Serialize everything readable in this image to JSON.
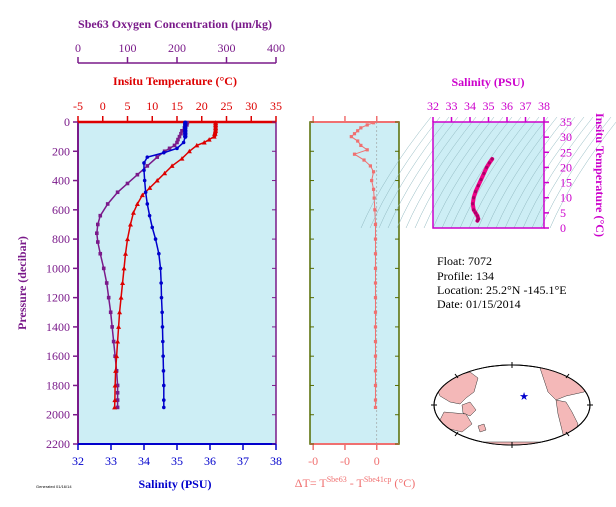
{
  "colors": {
    "oxygen": "#7a1a8a",
    "temperature": "#dd0000",
    "salinity": "#0000cc",
    "delta": "#f07070",
    "plot_bg": "#cdeef5",
    "delta_frame": "#556b00",
    "ts_frame": "#cc00cc",
    "ts_line": "#ee0088",
    "land": "#f4b8b8",
    "ocean_map": "#ffffff",
    "star": "#0000cc"
  },
  "chart_data": [
    {
      "type": "line",
      "name": "main-profile",
      "ylabel": "Pressure (decibar)",
      "ylim": [
        0,
        2200
      ],
      "yticks": [
        "0",
        "200",
        "400",
        "600",
        "800",
        "1000",
        "1200",
        "1400",
        "1600",
        "1800",
        "2000",
        "2200"
      ],
      "axes": {
        "oxygen": {
          "label": "Sbe63 Oxygen Concentration (µm/kg)",
          "xlim": [
            0,
            400
          ],
          "ticks": [
            "0",
            "100",
            "200",
            "300",
            "400"
          ]
        },
        "temperature": {
          "label": "Insitu Temperature (°C)",
          "xlim": [
            -5,
            35
          ],
          "ticks": [
            "-5",
            "0",
            "5",
            "10",
            "15",
            "20",
            "25",
            "30",
            "35"
          ]
        },
        "salinity": {
          "label": "Salinity (PSU)",
          "xlim": [
            32,
            38
          ],
          "ticks": [
            "32",
            "33",
            "34",
            "35",
            "36",
            "37",
            "38"
          ]
        }
      },
      "series": [
        {
          "key": "oxygen",
          "points": [
            [
              221,
              5
            ],
            [
              220,
              20
            ],
            [
              215,
              40
            ],
            [
              210,
              60
            ],
            [
              208,
              80
            ],
            [
              205,
              100
            ],
            [
              202,
              120
            ],
            [
              200,
              140
            ],
            [
              195,
              160
            ],
            [
              185,
              180
            ],
            [
              175,
              200
            ],
            [
              160,
              240
            ],
            [
              140,
              300
            ],
            [
              120,
              360
            ],
            [
              100,
              420
            ],
            [
              80,
              480
            ],
            [
              60,
              560
            ],
            [
              45,
              640
            ],
            [
              40,
              700
            ],
            [
              38,
              760
            ],
            [
              40,
              820
            ],
            [
              45,
              900
            ],
            [
              52,
              1000
            ],
            [
              58,
              1100
            ],
            [
              62,
              1200
            ],
            [
              66,
              1300
            ],
            [
              69,
              1400
            ],
            [
              72,
              1500
            ],
            [
              75,
              1600
            ],
            [
              78,
              1700
            ],
            [
              80,
              1800
            ],
            [
              80,
              1850
            ],
            [
              80,
              1900
            ],
            [
              80,
              1950
            ]
          ]
        },
        {
          "key": "temperature",
          "points": [
            [
              22.8,
              5
            ],
            [
              22.8,
              20
            ],
            [
              22.8,
              40
            ],
            [
              22.8,
              60
            ],
            [
              22.7,
              80
            ],
            [
              22.5,
              100
            ],
            [
              21.5,
              120
            ],
            [
              20.5,
              140
            ],
            [
              19,
              160
            ],
            [
              17.5,
              200
            ],
            [
              16,
              250
            ],
            [
              14,
              300
            ],
            [
              12.5,
              350
            ],
            [
              11,
              400
            ],
            [
              9.5,
              450
            ],
            [
              8,
              500
            ],
            [
              7,
              560
            ],
            [
              6.2,
              620
            ],
            [
              5.6,
              700
            ],
            [
              5,
              800
            ],
            [
              4.6,
              900
            ],
            [
              4.3,
              1000
            ],
            [
              4,
              1100
            ],
            [
              3.7,
              1200
            ],
            [
              3.4,
              1300
            ],
            [
              3.2,
              1400
            ],
            [
              3,
              1500
            ],
            [
              2.8,
              1600
            ],
            [
              2.6,
              1700
            ],
            [
              2.5,
              1800
            ],
            [
              2.45,
              1900
            ],
            [
              2.4,
              1950
            ]
          ]
        },
        {
          "key": "salinity",
          "points": [
            [
              35.25,
              5
            ],
            [
              35.25,
              20
            ],
            [
              35.25,
              40
            ],
            [
              35.25,
              60
            ],
            [
              35.25,
              80
            ],
            [
              35.25,
              100
            ],
            [
              35.2,
              140
            ],
            [
              35.0,
              180
            ],
            [
              34.6,
              210
            ],
            [
              34.1,
              240
            ],
            [
              34.0,
              280
            ],
            [
              34.0,
              330
            ],
            [
              34.02,
              400
            ],
            [
              34.05,
              480
            ],
            [
              34.1,
              560
            ],
            [
              34.17,
              640
            ],
            [
              34.25,
              720
            ],
            [
              34.35,
              800
            ],
            [
              34.45,
              900
            ],
            [
              34.5,
              1000
            ],
            [
              34.52,
              1100
            ],
            [
              34.53,
              1200
            ],
            [
              34.55,
              1300
            ],
            [
              34.56,
              1400
            ],
            [
              34.57,
              1500
            ],
            [
              34.58,
              1600
            ],
            [
              34.59,
              1700
            ],
            [
              34.6,
              1800
            ],
            [
              34.6,
              1900
            ],
            [
              34.6,
              1950
            ]
          ]
        }
      ]
    },
    {
      "type": "scatter",
      "name": "delta-temperature",
      "xlabel_prefix": "ΔT= T",
      "xlabel_sup1": "Sbe63",
      "xlabel_mid": " - T",
      "xlabel_sup2": "Sbe41cp",
      "xlabel_suffix": " (°C)",
      "xlim": [
        -1.05,
        0.35
      ],
      "ylim": [
        0,
        2200
      ],
      "xticks": [
        {
          "value": -1,
          "label": "-0"
        },
        {
          "value": -0.5,
          "label": "-0"
        },
        {
          "value": 0,
          "label": "0"
        }
      ],
      "points": [
        [
          -0.05,
          5
        ],
        [
          -0.15,
          20
        ],
        [
          -0.25,
          40
        ],
        [
          -0.3,
          60
        ],
        [
          -0.35,
          80
        ],
        [
          -0.4,
          100
        ],
        [
          -0.3,
          130
        ],
        [
          -0.25,
          160
        ],
        [
          -0.15,
          190
        ],
        [
          -0.35,
          220
        ],
        [
          -0.2,
          260
        ],
        [
          -0.1,
          300
        ],
        [
          -0.05,
          340
        ],
        [
          -0.08,
          400
        ],
        [
          -0.05,
          460
        ],
        [
          -0.04,
          520
        ],
        [
          -0.03,
          600
        ],
        [
          -0.02,
          700
        ],
        [
          -0.02,
          800
        ],
        [
          -0.02,
          900
        ],
        [
          -0.02,
          1000
        ],
        [
          -0.02,
          1100
        ],
        [
          -0.02,
          1200
        ],
        [
          -0.02,
          1300
        ],
        [
          -0.02,
          1400
        ],
        [
          -0.02,
          1500
        ],
        [
          -0.02,
          1600
        ],
        [
          -0.02,
          1700
        ],
        [
          -0.02,
          1800
        ],
        [
          -0.02,
          1900
        ],
        [
          -0.02,
          1950
        ]
      ]
    },
    {
      "type": "line",
      "name": "ts-diagram",
      "xlabel": "Salinity (PSU)",
      "ylabel": "Insitu Temperature (°C)",
      "xlim": [
        32,
        38
      ],
      "ylim": [
        0,
        35
      ],
      "xticks": [
        "32",
        "33",
        "34",
        "35",
        "36",
        "37",
        "38"
      ],
      "yticks": [
        "0",
        "5",
        "10",
        "15",
        "20",
        "25",
        "30",
        "35"
      ],
      "points": [
        [
          34.4,
          2.4
        ],
        [
          34.45,
          3
        ],
        [
          34.4,
          4
        ],
        [
          34.3,
          5
        ],
        [
          34.2,
          6
        ],
        [
          34.15,
          8
        ],
        [
          34.2,
          10
        ],
        [
          34.3,
          12
        ],
        [
          34.45,
          14
        ],
        [
          34.6,
          16
        ],
        [
          34.75,
          18
        ],
        [
          34.9,
          20
        ],
        [
          35.05,
          21.5
        ],
        [
          35.2,
          22.8
        ]
      ]
    }
  ],
  "info": {
    "float": "Float:  7072",
    "profile": "Profile:  134",
    "location": "Location:  25.2°N  -145.1°E",
    "date": "Date:  01/15/2014"
  },
  "footer_logo": "Generated 01/16/14",
  "map": {
    "marker": "float-position"
  }
}
